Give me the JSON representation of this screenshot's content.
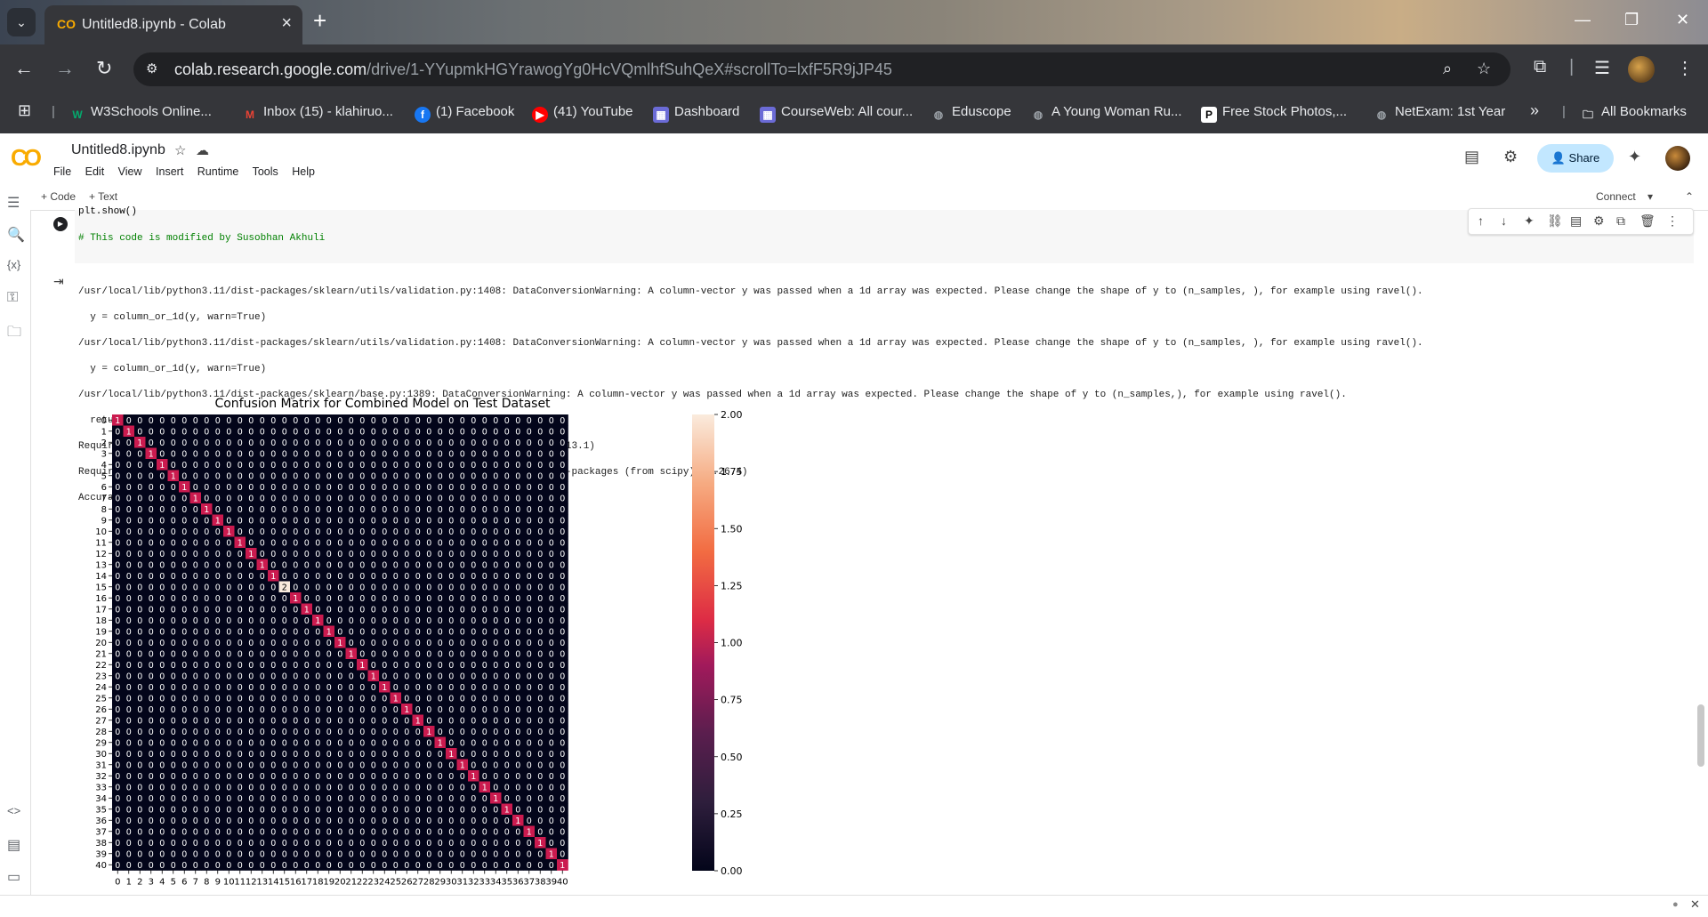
{
  "browser": {
    "tab_title": "Untitled8.ipynb - Colab",
    "url_host": "colab.research.google.com",
    "url_path": "/drive/1-YYupmkHGYrawogYg0HcVQmlhfSuhQeX#scrollTo=lxfF5R9jJP45",
    "bookmarks": [
      {
        "label": "W3Schools Online...",
        "icon": "w3schools-icon",
        "color": "#04aa6d"
      },
      {
        "label": "Inbox (15) - klahiruo...",
        "icon": "gmail-icon",
        "color": "#ea4335"
      },
      {
        "label": "(1) Facebook",
        "icon": "facebook-icon",
        "color": "#1877f2"
      },
      {
        "label": "(41) YouTube",
        "icon": "youtube-icon",
        "color": "#ff0000"
      },
      {
        "label": "Dashboard",
        "icon": "dashboard-icon",
        "color": "#6b6bd6"
      },
      {
        "label": "CourseWeb: All cour...",
        "icon": "courseweb-icon",
        "color": "#6b6bd6"
      },
      {
        "label": "Eduscope",
        "icon": "globe-icon",
        "color": "#9aa0a6"
      },
      {
        "label": "A Young Woman Ru...",
        "icon": "globe-icon",
        "color": "#9aa0a6"
      },
      {
        "label": "Free Stock Photos,...",
        "icon": "pexels-icon",
        "color": "#ffffff"
      },
      {
        "label": "NetExam: 1st Year",
        "icon": "globe-icon",
        "color": "#9aa0a6"
      }
    ],
    "all_bookmarks": "All Bookmarks"
  },
  "colab": {
    "notebook_title": "Untitled8.ipynb",
    "menu": [
      "File",
      "Edit",
      "View",
      "Insert",
      "Runtime",
      "Tools",
      "Help"
    ],
    "share_label": "Share",
    "add_code": "+ Code",
    "add_text": "+ Text",
    "connect_label": "Connect"
  },
  "cell": {
    "code_line1": "plt.show()",
    "code_line2": "# This code is modified by Susobhan Akhuli"
  },
  "output_lines": [
    "/usr/local/lib/python3.11/dist-packages/sklearn/utils/validation.py:1408: DataConversionWarning: A column-vector y was passed when a 1d array was expected. Please change the shape of y to (n_samples, ), for example using ravel().",
    "  y = column_or_1d(y, warn=True)",
    "/usr/local/lib/python3.11/dist-packages/sklearn/utils/validation.py:1408: DataConversionWarning: A column-vector y was passed when a 1d array was expected. Please change the shape of y to (n_samples, ), for example using ravel().",
    "  y = column_or_1d(y, warn=True)",
    "/usr/local/lib/python3.11/dist-packages/sklearn/base.py:1389: DataConversionWarning: A column-vector y was passed when a 1d array was expected. Please change the shape of y to (n_samples,), for example using ravel().",
    "  return fit_method(estimator, *args, **kwargs)",
    "Requirement already satisfied: scipy in /usr/local/lib/python3.11/dist-packages (1.13.1)",
    "Requirement already satisfied: numpy<2.3,>=1.22.4 in /usr/local/lib/python3.11/dist-packages (from scipy) (1.26.4)",
    "Accuracy on Test dataset by the combined model: 100.0"
  ],
  "chart_data": {
    "type": "heatmap",
    "title": "Confusion Matrix for Combined Model on Test Dataset",
    "rows": [
      0,
      1,
      2,
      3,
      4,
      5,
      6,
      7,
      8,
      9,
      10,
      11,
      12,
      13,
      14,
      15,
      16,
      17,
      18,
      19,
      20,
      21,
      22,
      23,
      24,
      25,
      26,
      27,
      28,
      29,
      30,
      31,
      32,
      33,
      34,
      35,
      36,
      37,
      38,
      39,
      40
    ],
    "cols": [
      0,
      1,
      2,
      3,
      4,
      5,
      6,
      7,
      8,
      9,
      10,
      11,
      12,
      13,
      14,
      15,
      16,
      17,
      18,
      19,
      20,
      21,
      22,
      23,
      24,
      25,
      26,
      27,
      28,
      29,
      30,
      31,
      32,
      33,
      34,
      35,
      36,
      37,
      38,
      39,
      40
    ],
    "diagonal": [
      1,
      1,
      1,
      1,
      1,
      1,
      1,
      1,
      1,
      1,
      1,
      1,
      1,
      1,
      1,
      2,
      1,
      1,
      1,
      1,
      1,
      1,
      1,
      1,
      1,
      1,
      1,
      1,
      1,
      1,
      1,
      1,
      1,
      1,
      1,
      1,
      1,
      1,
      1,
      1,
      1
    ],
    "off_diagonal": 0,
    "colorbar_range": [
      0.0,
      2.0
    ],
    "colorbar_ticks": [
      "0.00",
      "0.25",
      "0.50",
      "0.75",
      "1.00",
      "1.25",
      "1.50",
      "1.75",
      "2.00"
    ],
    "colormap": "rocket",
    "colors": {
      "zero": "#03051a",
      "one": "#cb1b4f",
      "two": "#faebdd"
    }
  }
}
